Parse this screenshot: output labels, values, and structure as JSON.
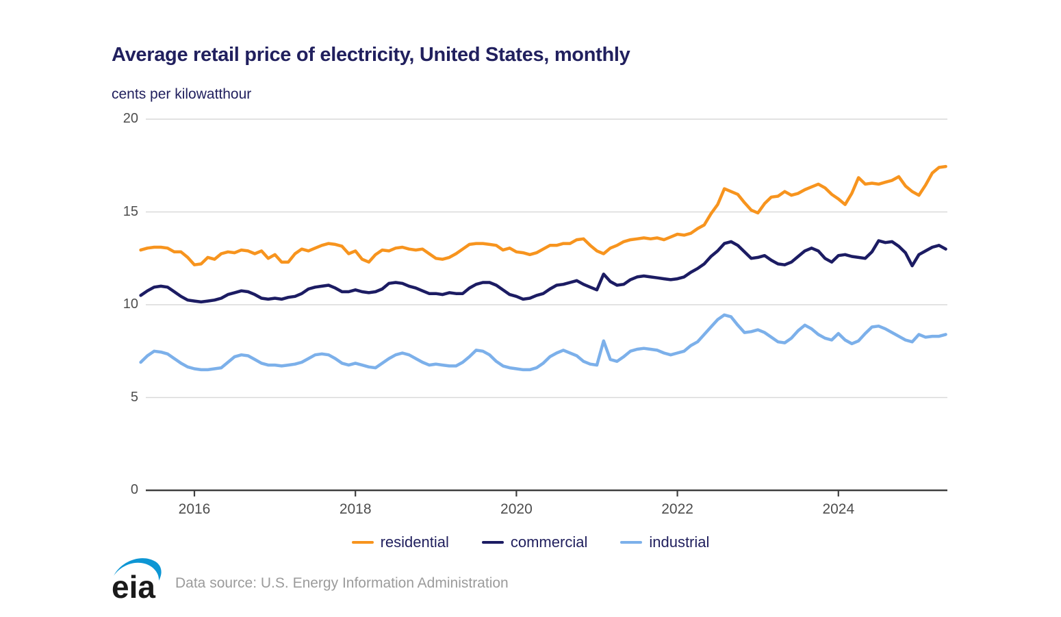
{
  "title": "Average retail price of electricity, United States, monthly",
  "subtitle": "cents per kilowatthour",
  "source_note": "Data source: U.S. Energy Information Administration",
  "logo_text": "eia",
  "colors": {
    "residential": "#f7941e",
    "commercial": "#1c1c63",
    "industrial": "#7cb0ea",
    "grid": "#d9d9d9",
    "axis": "#3f3f3f",
    "tick_text": "#4d4d4d",
    "heading": "#21205e",
    "source_text": "#9b9b9b",
    "logo_black": "#1a1a1a",
    "logo_blue": "#0d96d4"
  },
  "legend": {
    "items": [
      {
        "label": "residential"
      },
      {
        "label": "commercial"
      },
      {
        "label": "industrial"
      }
    ]
  },
  "chart_data": {
    "type": "line",
    "title": "Average retail price of electricity, United States, monthly",
    "ylabel": "cents per kilowatthour",
    "frequency": "monthly",
    "x_start": "2015-05",
    "x_end": "2025-05",
    "ylim": [
      0,
      20
    ],
    "y_ticks": [
      0,
      5,
      10,
      15,
      20
    ],
    "x_tick_years": [
      2016,
      2018,
      2020,
      2022,
      2024
    ],
    "grid": "horizontal",
    "legend_position": "bottom",
    "series": [
      {
        "name": "residential",
        "color": "#f7941e",
        "values": [
          12.95,
          13.05,
          13.1,
          13.1,
          13.05,
          12.85,
          12.85,
          12.55,
          12.15,
          12.2,
          12.55,
          12.45,
          12.75,
          12.85,
          12.8,
          12.95,
          12.9,
          12.75,
          12.9,
          12.5,
          12.7,
          12.3,
          12.3,
          12.75,
          13.0,
          12.9,
          13.05,
          13.2,
          13.3,
          13.25,
          13.15,
          12.75,
          12.9,
          12.45,
          12.3,
          12.7,
          12.95,
          12.9,
          13.05,
          13.1,
          13.0,
          12.95,
          13.0,
          12.75,
          12.5,
          12.45,
          12.55,
          12.75,
          13.0,
          13.25,
          13.3,
          13.3,
          13.25,
          13.2,
          12.95,
          13.05,
          12.85,
          12.8,
          12.7,
          12.8,
          13.0,
          13.2,
          13.2,
          13.3,
          13.3,
          13.5,
          13.55,
          13.2,
          12.9,
          12.75,
          13.05,
          13.2,
          13.4,
          13.5,
          13.55,
          13.6,
          13.55,
          13.6,
          13.5,
          13.65,
          13.8,
          13.75,
          13.85,
          14.1,
          14.3,
          14.9,
          15.4,
          16.25,
          16.1,
          15.95,
          15.5,
          15.1,
          14.95,
          15.45,
          15.8,
          15.85,
          16.1,
          15.9,
          16.0,
          16.2,
          16.35,
          16.5,
          16.3,
          15.95,
          15.7,
          15.4,
          16.0,
          16.85,
          16.5,
          16.55,
          16.5,
          16.6,
          16.7,
          16.9,
          16.4,
          16.1,
          15.9,
          16.45,
          17.1,
          17.4,
          17.45
        ]
      },
      {
        "name": "commercial",
        "color": "#1c1c63",
        "values": [
          10.5,
          10.75,
          10.95,
          11.0,
          10.95,
          10.7,
          10.45,
          10.25,
          10.2,
          10.15,
          10.2,
          10.25,
          10.35,
          10.55,
          10.65,
          10.75,
          10.7,
          10.55,
          10.35,
          10.3,
          10.35,
          10.3,
          10.4,
          10.45,
          10.6,
          10.85,
          10.95,
          11.0,
          11.05,
          10.9,
          10.7,
          10.7,
          10.8,
          10.7,
          10.65,
          10.7,
          10.85,
          11.15,
          11.2,
          11.15,
          11.0,
          10.9,
          10.75,
          10.6,
          10.6,
          10.55,
          10.65,
          10.6,
          10.6,
          10.9,
          11.1,
          11.2,
          11.2,
          11.05,
          10.8,
          10.55,
          10.45,
          10.3,
          10.35,
          10.5,
          10.6,
          10.85,
          11.05,
          11.1,
          11.2,
          11.3,
          11.1,
          10.95,
          10.8,
          11.65,
          11.25,
          11.05,
          11.1,
          11.35,
          11.5,
          11.55,
          11.5,
          11.45,
          11.4,
          11.35,
          11.4,
          11.5,
          11.75,
          11.95,
          12.2,
          12.6,
          12.9,
          13.3,
          13.4,
          13.2,
          12.85,
          12.5,
          12.55,
          12.65,
          12.4,
          12.2,
          12.15,
          12.3,
          12.6,
          12.9,
          13.05,
          12.9,
          12.5,
          12.3,
          12.65,
          12.7,
          12.6,
          12.55,
          12.5,
          12.85,
          13.45,
          13.35,
          13.4,
          13.15,
          12.8,
          12.1,
          12.7,
          12.9,
          13.1,
          13.2,
          13.0
        ]
      },
      {
        "name": "industrial",
        "color": "#7cb0ea",
        "values": [
          6.9,
          7.25,
          7.5,
          7.45,
          7.35,
          7.1,
          6.85,
          6.65,
          6.55,
          6.5,
          6.5,
          6.55,
          6.6,
          6.9,
          7.2,
          7.3,
          7.25,
          7.05,
          6.85,
          6.75,
          6.75,
          6.7,
          6.75,
          6.8,
          6.9,
          7.1,
          7.3,
          7.35,
          7.3,
          7.1,
          6.85,
          6.75,
          6.85,
          6.75,
          6.65,
          6.6,
          6.85,
          7.1,
          7.3,
          7.4,
          7.3,
          7.1,
          6.9,
          6.75,
          6.8,
          6.75,
          6.7,
          6.7,
          6.9,
          7.2,
          7.55,
          7.5,
          7.3,
          6.95,
          6.7,
          6.6,
          6.55,
          6.5,
          6.5,
          6.6,
          6.85,
          7.2,
          7.4,
          7.55,
          7.4,
          7.25,
          6.95,
          6.8,
          6.75,
          8.05,
          7.05,
          6.95,
          7.2,
          7.5,
          7.6,
          7.65,
          7.6,
          7.55,
          7.4,
          7.3,
          7.4,
          7.5,
          7.8,
          8.0,
          8.4,
          8.8,
          9.2,
          9.45,
          9.35,
          8.9,
          8.5,
          8.55,
          8.65,
          8.5,
          8.25,
          8.0,
          7.95,
          8.2,
          8.6,
          8.9,
          8.7,
          8.4,
          8.2,
          8.1,
          8.45,
          8.1,
          7.9,
          8.05,
          8.45,
          8.8,
          8.85,
          8.7,
          8.5,
          8.3,
          8.1,
          8.0,
          8.4,
          8.25,
          8.3,
          8.3,
          8.4
        ]
      }
    ]
  }
}
